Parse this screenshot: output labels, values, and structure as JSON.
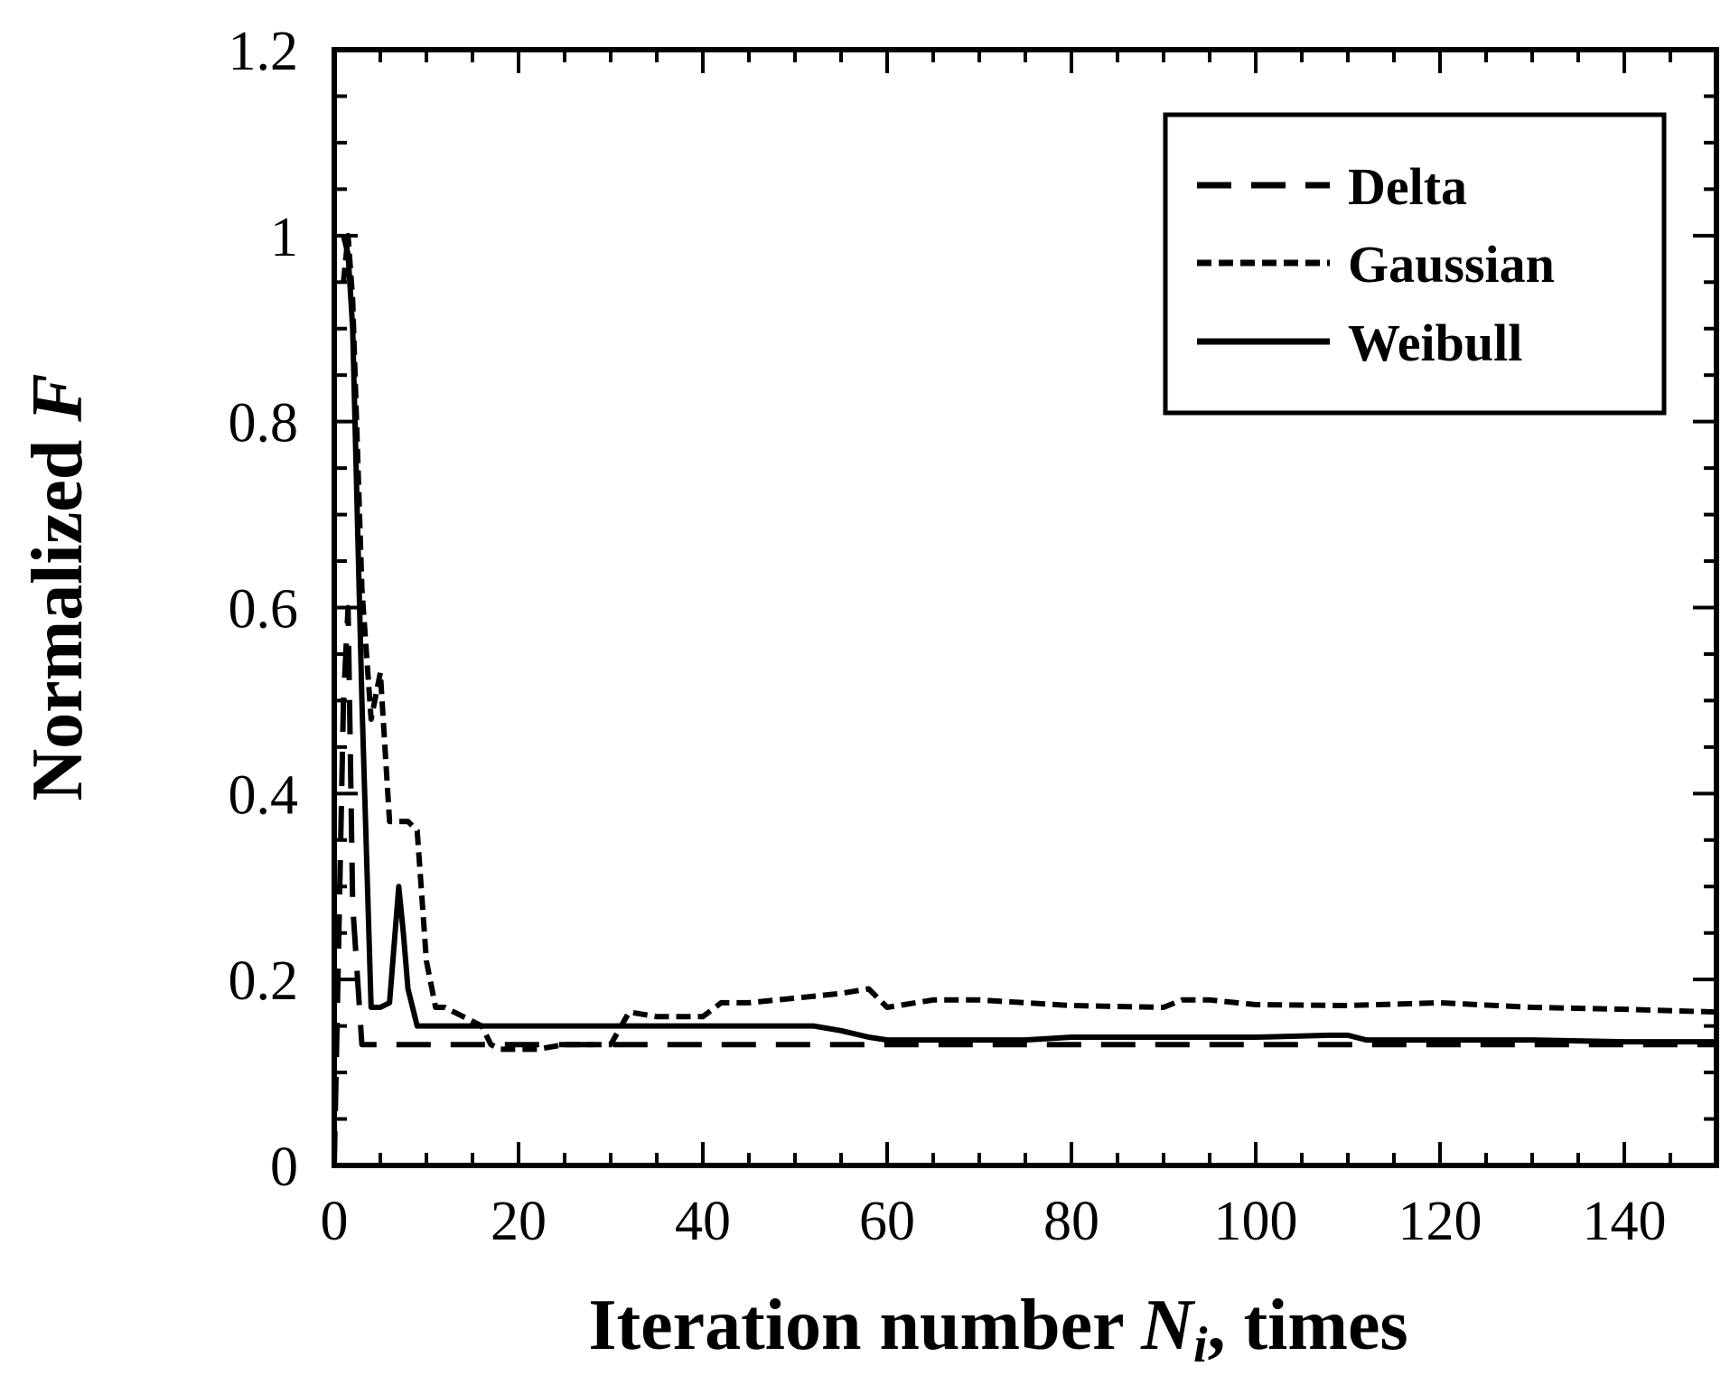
{
  "chart_data": {
    "type": "line",
    "xlabel": {
      "prefix": "Iteration number ",
      "var": "N",
      "sub": "i",
      "suffix": ", times"
    },
    "ylabel": {
      "prefix": "Normalized ",
      "var": "F"
    },
    "xlim": [
      0,
      150
    ],
    "ylim": [
      0,
      1.2
    ],
    "xticks": [
      0,
      20,
      40,
      60,
      80,
      100,
      120,
      140
    ],
    "xtick_labels": [
      "0",
      "20",
      "40",
      "60",
      "80",
      "100",
      "120",
      "140"
    ],
    "yticks": [
      0,
      0.2,
      0.4,
      0.6,
      0.8,
      1,
      1.2
    ],
    "ytick_labels": [
      "0",
      "0.2",
      "0.4",
      "0.6",
      "0.8",
      "1",
      "1.2"
    ],
    "grid": false,
    "legend_position": "top-right",
    "series": [
      {
        "name": "Delta",
        "style": "long-dash",
        "color": "#000000",
        "x": [
          0,
          1,
          1.5,
          2,
          3,
          10,
          20,
          40,
          60,
          80,
          100,
          120,
          150
        ],
        "y": [
          0,
          0.5,
          0.6,
          0.28,
          0.13,
          0.13,
          0.13,
          0.13,
          0.13,
          0.13,
          0.13,
          0.13,
          0.13
        ]
      },
      {
        "name": "Gaussian",
        "style": "short-dash",
        "color": "#000000",
        "x": [
          1,
          1.5,
          2,
          3,
          4,
          5,
          6,
          7,
          8,
          9,
          10,
          11,
          12,
          14,
          16,
          17,
          18,
          20,
          22,
          25,
          30,
          32,
          35,
          40,
          42,
          45,
          50,
          55,
          58,
          60,
          65,
          70,
          80,
          90,
          92,
          95,
          100,
          110,
          120,
          130,
          140,
          150
        ],
        "y": [
          0.95,
          1.0,
          0.93,
          0.62,
          0.48,
          0.53,
          0.37,
          0.37,
          0.37,
          0.36,
          0.22,
          0.17,
          0.17,
          0.16,
          0.15,
          0.13,
          0.125,
          0.125,
          0.125,
          0.13,
          0.13,
          0.165,
          0.16,
          0.16,
          0.175,
          0.175,
          0.18,
          0.185,
          0.19,
          0.17,
          0.178,
          0.178,
          0.172,
          0.17,
          0.178,
          0.178,
          0.173,
          0.172,
          0.175,
          0.17,
          0.168,
          0.165
        ]
      },
      {
        "name": "Weibull",
        "style": "solid",
        "color": "#000000",
        "x": [
          1,
          1.5,
          2,
          3,
          4,
          5,
          6,
          7,
          7.5,
          8,
          9,
          10,
          15,
          20,
          30,
          40,
          50,
          52,
          55,
          58,
          60,
          70,
          75,
          80,
          90,
          100,
          108,
          110,
          112,
          120,
          130,
          140,
          150
        ],
        "y": [
          1.0,
          0.98,
          0.9,
          0.5,
          0.17,
          0.17,
          0.175,
          0.3,
          0.25,
          0.19,
          0.15,
          0.15,
          0.15,
          0.15,
          0.15,
          0.15,
          0.15,
          0.15,
          0.145,
          0.138,
          0.135,
          0.135,
          0.135,
          0.138,
          0.138,
          0.138,
          0.14,
          0.14,
          0.135,
          0.135,
          0.135,
          0.133,
          0.133
        ]
      }
    ]
  }
}
